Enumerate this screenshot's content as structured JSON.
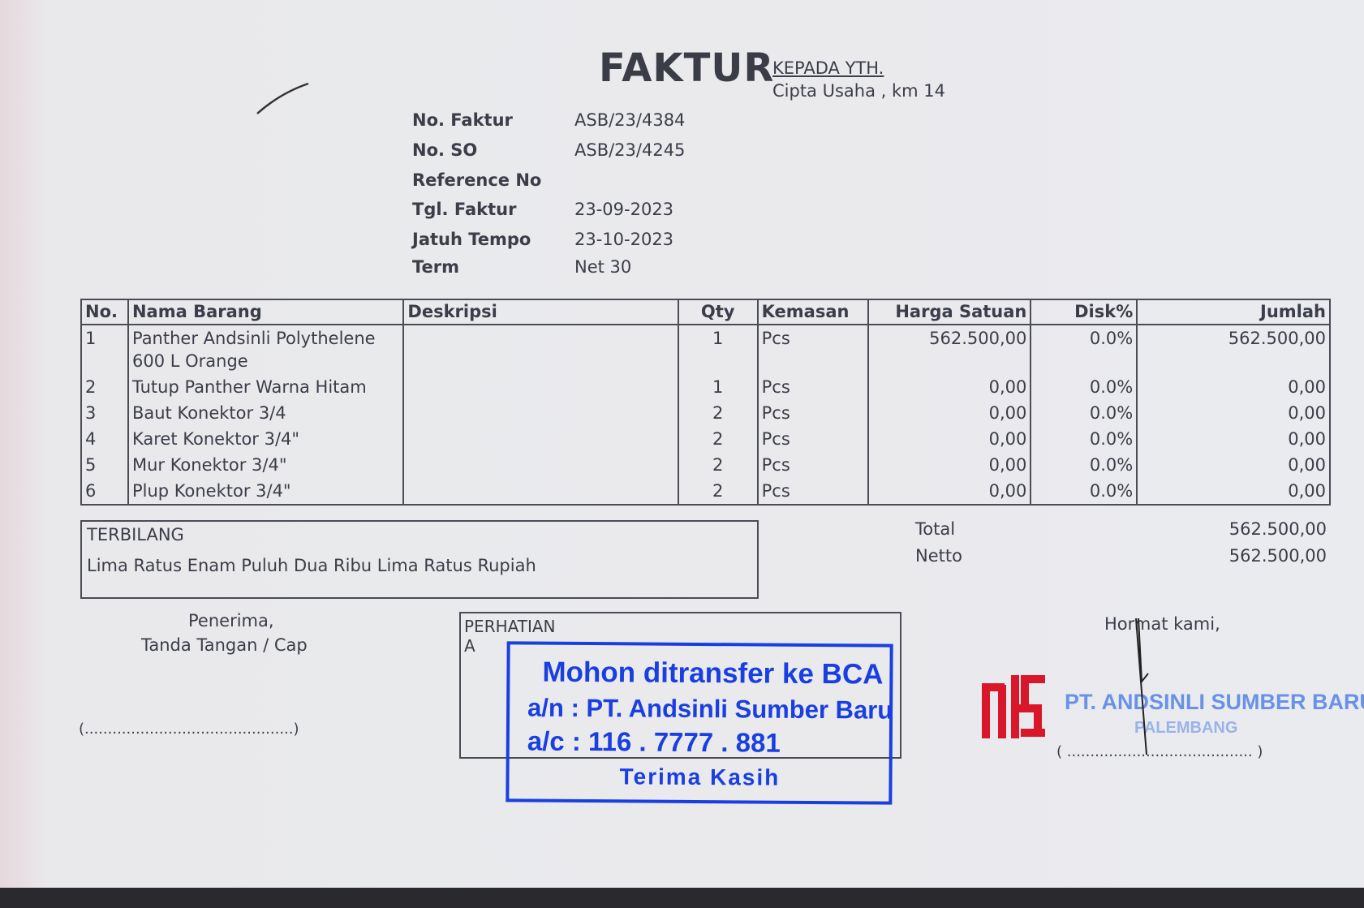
{
  "header": {
    "title": "FAKTUR",
    "kepada_label": "KEPADA YTH.",
    "kepada_value": "Cipta Usaha , km 14"
  },
  "info": [
    {
      "label": "No. Faktur",
      "value": "ASB/23/4384"
    },
    {
      "label": "No. SO",
      "value": "ASB/23/4245"
    },
    {
      "label": "Reference No",
      "value": ""
    },
    {
      "label": "Tgl. Faktur",
      "value": "23-09-2023"
    },
    {
      "label": "Jatuh Tempo",
      "value": "23-10-2023"
    },
    {
      "label": "Term",
      "value": "Net 30"
    }
  ],
  "table": {
    "headers": [
      "No.",
      "Nama Barang",
      "Deskripsi",
      "Qty",
      "Kemasan",
      "Harga Satuan",
      "Disk%",
      "Jumlah"
    ],
    "rows": [
      [
        "1",
        "Panther Andsinli Polythelene 600 L Orange",
        "",
        "1",
        "Pcs",
        "562.500,00",
        "0.0%",
        "562.500,00"
      ],
      [
        "2",
        "Tutup Panther Warna Hitam",
        "",
        "1",
        "Pcs",
        "0,00",
        "0.0%",
        "0,00"
      ],
      [
        "3",
        "Baut Konektor 3/4",
        "",
        "2",
        "Pcs",
        "0,00",
        "0.0%",
        "0,00"
      ],
      [
        "4",
        "Karet Konektor 3/4\"",
        "",
        "2",
        "Pcs",
        "0,00",
        "0.0%",
        "0,00"
      ],
      [
        "5",
        "Mur Konektor 3/4\"",
        "",
        "2",
        "Pcs",
        "0,00",
        "0.0%",
        "0,00"
      ],
      [
        "6",
        "Plup Konektor 3/4\"",
        "",
        "2",
        "Pcs",
        "0,00",
        "0.0%",
        "0,00"
      ]
    ]
  },
  "terbilang": {
    "label": "TERBILANG",
    "text": "Lima Ratus Enam Puluh Dua Ribu Lima Ratus Rupiah"
  },
  "totals": {
    "total_label": "Total",
    "total": "562.500,00",
    "netto_label": "Netto",
    "netto": "562.500,00"
  },
  "receiver": {
    "line1": "Penerima,",
    "line2": "Tanda Tangan / Cap",
    "sign_line": "(.............................................)"
  },
  "perhatian": {
    "label": "PERHATIAN",
    "label2": "A"
  },
  "bank_stamp": {
    "line1": "Mohon ditransfer ke BCA",
    "line2": "a/n : PT. Andsinli Sumber Baru",
    "line3": "a/c : 116 . 7777 . 881",
    "line4": "Terima Kasih",
    "color": "#1a3fe0"
  },
  "sender": {
    "greeting": "Hormat kami,",
    "company_stamp": "PT. ANDSINLI SUMBER BARU",
    "city_stamp": "PALEMBANG",
    "sign_line": "( ........................................ )",
    "logo_text": "ASB",
    "logo_color": "#d8182a"
  }
}
